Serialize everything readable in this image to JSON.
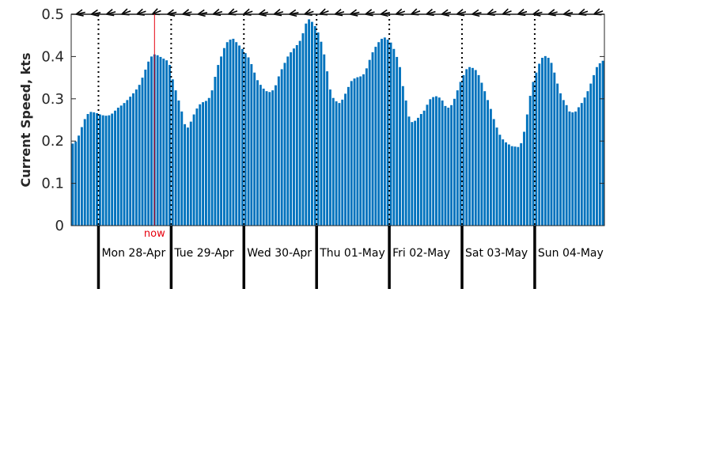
{
  "chart_data": {
    "type": "bar",
    "ylabel": "Current Speed, kts",
    "ylim": [
      0,
      0.5
    ],
    "yticks": [
      "0",
      "0.1",
      "0.2",
      "0.3",
      "0.4",
      "0.5"
    ],
    "bar_color": "#0072bd",
    "now_color": "#e6000e",
    "now_label": "now",
    "now_index": 27,
    "hours_per_bar": 1,
    "start_hour_offset": -9,
    "days": [
      "Mon 28-Apr",
      "Tue 29-Apr",
      "Wed 30-Apr",
      "Thu 01-May",
      "Fri 02-May",
      "Sat 03-May",
      "Sun 04-May"
    ],
    "values": [
      0.194,
      0.199,
      0.213,
      0.233,
      0.252,
      0.264,
      0.269,
      0.268,
      0.266,
      0.263,
      0.261,
      0.26,
      0.261,
      0.265,
      0.272,
      0.279,
      0.284,
      0.29,
      0.297,
      0.305,
      0.313,
      0.322,
      0.333,
      0.35,
      0.369,
      0.388,
      0.4,
      0.405,
      0.403,
      0.399,
      0.395,
      0.391,
      0.38,
      0.346,
      0.32,
      0.296,
      0.27,
      0.24,
      0.232,
      0.246,
      0.263,
      0.277,
      0.287,
      0.292,
      0.295,
      0.302,
      0.32,
      0.352,
      0.38,
      0.4,
      0.42,
      0.434,
      0.44,
      0.442,
      0.434,
      0.426,
      0.418,
      0.408,
      0.398,
      0.382,
      0.362,
      0.344,
      0.333,
      0.324,
      0.318,
      0.316,
      0.32,
      0.332,
      0.353,
      0.37,
      0.385,
      0.4,
      0.41,
      0.419,
      0.427,
      0.437,
      0.455,
      0.478,
      0.488,
      0.482,
      0.472,
      0.457,
      0.435,
      0.405,
      0.365,
      0.322,
      0.302,
      0.294,
      0.29,
      0.298,
      0.312,
      0.328,
      0.342,
      0.348,
      0.351,
      0.353,
      0.358,
      0.372,
      0.392,
      0.41,
      0.423,
      0.434,
      0.442,
      0.445,
      0.44,
      0.433,
      0.418,
      0.399,
      0.375,
      0.33,
      0.296,
      0.258,
      0.245,
      0.248,
      0.255,
      0.264,
      0.272,
      0.286,
      0.299,
      0.304,
      0.306,
      0.303,
      0.296,
      0.283,
      0.279,
      0.285,
      0.3,
      0.32,
      0.34,
      0.356,
      0.37,
      0.375,
      0.373,
      0.368,
      0.356,
      0.338,
      0.318,
      0.297,
      0.276,
      0.252,
      0.232,
      0.215,
      0.204,
      0.197,
      0.192,
      0.188,
      0.187,
      0.186,
      0.195,
      0.222,
      0.263,
      0.307,
      0.34,
      0.362,
      0.383,
      0.397,
      0.401,
      0.397,
      0.385,
      0.362,
      0.336,
      0.313,
      0.297,
      0.285,
      0.27,
      0.268,
      0.27,
      0.28,
      0.29,
      0.303,
      0.318,
      0.336,
      0.356,
      0.375,
      0.384,
      0.39
    ],
    "arrows": [
      {
        "angle": 168
      },
      {
        "angle": 170
      },
      {
        "angle": 165
      },
      {
        "angle": 160
      },
      {
        "angle": 162
      },
      {
        "angle": 158
      },
      {
        "angle": 168
      },
      {
        "angle": 166
      },
      {
        "angle": 170
      },
      {
        "angle": 164
      },
      {
        "angle": 160
      },
      {
        "angle": 162
      },
      {
        "angle": 168
      },
      {
        "angle": 165
      },
      {
        "angle": 170
      },
      {
        "angle": 163
      },
      {
        "angle": 160
      },
      {
        "angle": 165
      },
      {
        "angle": 168
      },
      {
        "angle": 166
      },
      {
        "angle": 170
      },
      {
        "angle": 162
      },
      {
        "angle": 160
      },
      {
        "angle": 164
      },
      {
        "angle": 168
      },
      {
        "angle": 165
      },
      {
        "angle": 170
      },
      {
        "angle": 163
      },
      {
        "angle": 160
      },
      {
        "angle": 164
      },
      {
        "angle": 168
      },
      {
        "angle": 166
      },
      {
        "angle": 170
      },
      {
        "angle": 162
      },
      {
        "angle": 160
      }
    ]
  }
}
